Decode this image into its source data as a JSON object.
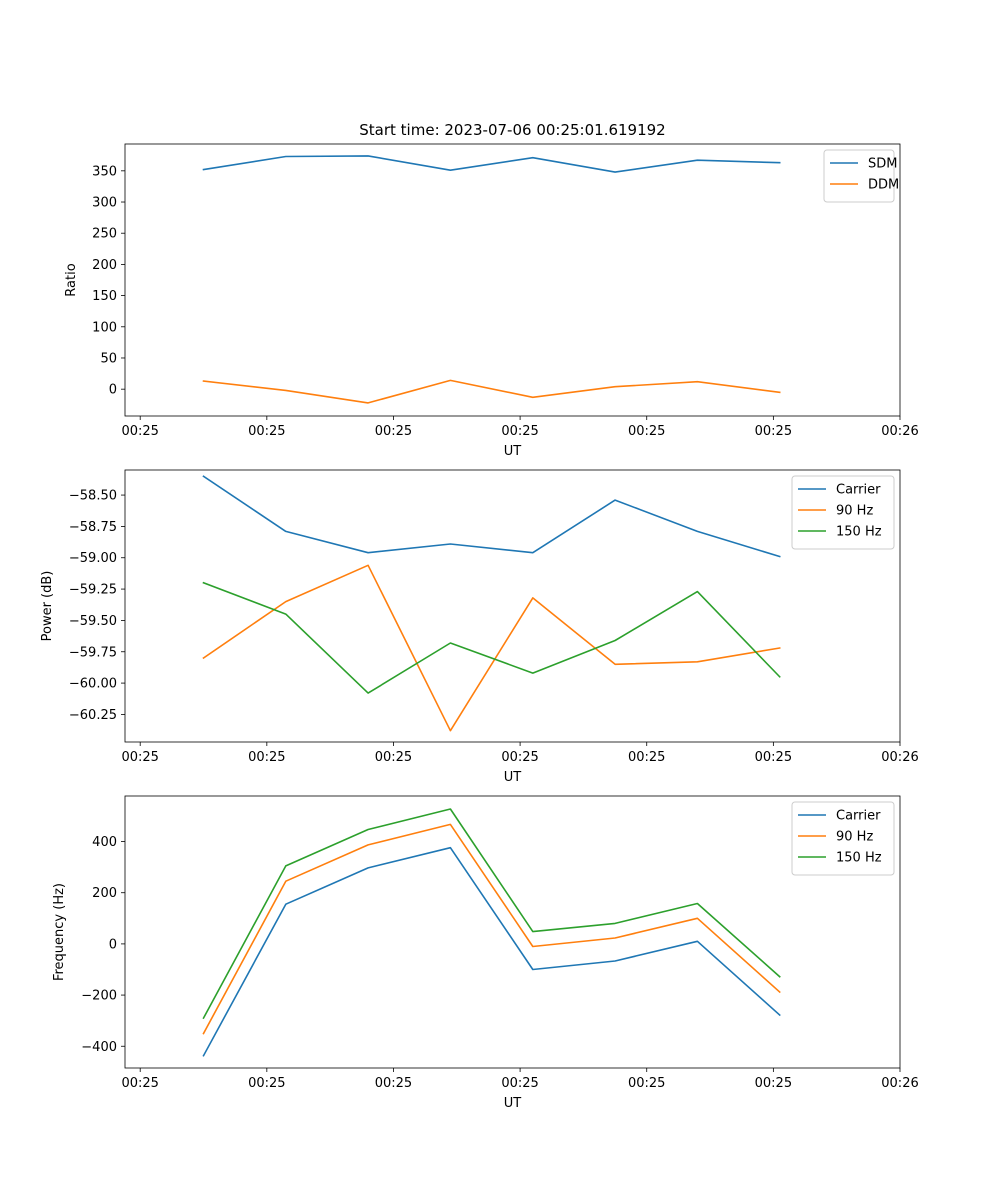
{
  "chart_data": [
    {
      "type": "line",
      "title": "Start time: 2023-07-06 00:25:01.619192",
      "xlabel": "UT",
      "ylabel": "Ratio",
      "x": [
        0.5,
        1.15,
        1.8,
        2.45,
        3.1,
        3.75,
        4.4,
        5.05
      ],
      "xlim": [
        -0.12,
        6.0
      ],
      "x_ticks": [
        0,
        1,
        2,
        3,
        4,
        5,
        6
      ],
      "x_tick_labels": [
        "00:25",
        "00:25",
        "00:25",
        "00:25",
        "00:25",
        "00:25",
        "00:26"
      ],
      "ylim": [
        -43,
        393
      ],
      "y_ticks": [
        0,
        50,
        100,
        150,
        200,
        250,
        300,
        350
      ],
      "y_tick_labels": [
        "0",
        "50",
        "100",
        "150",
        "200",
        "250",
        "300",
        "350"
      ],
      "legend": "top-right",
      "series": [
        {
          "name": "SDM",
          "color": "#1f77b4",
          "values": [
            352,
            373,
            374,
            351,
            371,
            348,
            367,
            363
          ]
        },
        {
          "name": "DDM",
          "color": "#ff7f0e",
          "values": [
            13,
            -2,
            -22,
            14,
            -13,
            4,
            12,
            -5
          ]
        }
      ]
    },
    {
      "type": "line",
      "title": "",
      "xlabel": "UT",
      "ylabel": "Power (dB)",
      "x": [
        0.5,
        1.15,
        1.8,
        2.45,
        3.1,
        3.75,
        4.4,
        5.05
      ],
      "xlim": [
        -0.12,
        6.0
      ],
      "x_ticks": [
        0,
        1,
        2,
        3,
        4,
        5,
        6
      ],
      "x_tick_labels": [
        "00:25",
        "00:25",
        "00:25",
        "00:25",
        "00:25",
        "00:25",
        "00:26"
      ],
      "ylim": [
        -60.47,
        -58.3
      ],
      "y_ticks": [
        -60.25,
        -60.0,
        -59.75,
        -59.5,
        -59.25,
        -59.0,
        -58.75,
        -58.5
      ],
      "y_tick_labels": [
        "−60.25",
        "−60.00",
        "−59.75",
        "−59.50",
        "−59.25",
        "−59.00",
        "−58.75",
        "−58.50"
      ],
      "legend": "top-right",
      "series": [
        {
          "name": "Carrier",
          "color": "#1f77b4",
          "values": [
            -58.35,
            -58.79,
            -58.96,
            -58.89,
            -58.96,
            -58.54,
            -58.79,
            -58.99
          ]
        },
        {
          "name": "90 Hz",
          "color": "#ff7f0e",
          "values": [
            -59.8,
            -59.35,
            -59.06,
            -60.38,
            -59.32,
            -59.85,
            -59.83,
            -59.72
          ]
        },
        {
          "name": "150 Hz",
          "color": "#2ca02c",
          "values": [
            -59.2,
            -59.45,
            -60.08,
            -59.68,
            -59.92,
            -59.66,
            -59.27,
            -59.95
          ]
        }
      ]
    },
    {
      "type": "line",
      "title": "",
      "xlabel": "UT",
      "ylabel": "Frequency (Hz)",
      "x": [
        0.5,
        1.15,
        1.8,
        2.45,
        3.1,
        3.75,
        4.4,
        5.05
      ],
      "xlim": [
        -0.12,
        6.0
      ],
      "x_ticks": [
        0,
        1,
        2,
        3,
        4,
        5,
        6
      ],
      "x_tick_labels": [
        "00:25",
        "00:25",
        "00:25",
        "00:25",
        "00:25",
        "00:25",
        "00:26"
      ],
      "ylim": [
        -485,
        578
      ],
      "y_ticks": [
        -400,
        -200,
        0,
        200,
        400
      ],
      "y_tick_labels": [
        "−400",
        "−200",
        "0",
        "200",
        "400"
      ],
      "legend": "top-right",
      "series": [
        {
          "name": "Carrier",
          "color": "#1f77b4",
          "values": [
            -437,
            155,
            297,
            376,
            -100,
            -67,
            10,
            -278
          ]
        },
        {
          "name": "90 Hz",
          "color": "#ff7f0e",
          "values": [
            -350,
            245,
            387,
            467,
            -10,
            23,
            100,
            -188
          ]
        },
        {
          "name": "150 Hz",
          "color": "#2ca02c",
          "values": [
            -290,
            305,
            447,
            527,
            48,
            80,
            158,
            -128
          ]
        }
      ]
    }
  ]
}
